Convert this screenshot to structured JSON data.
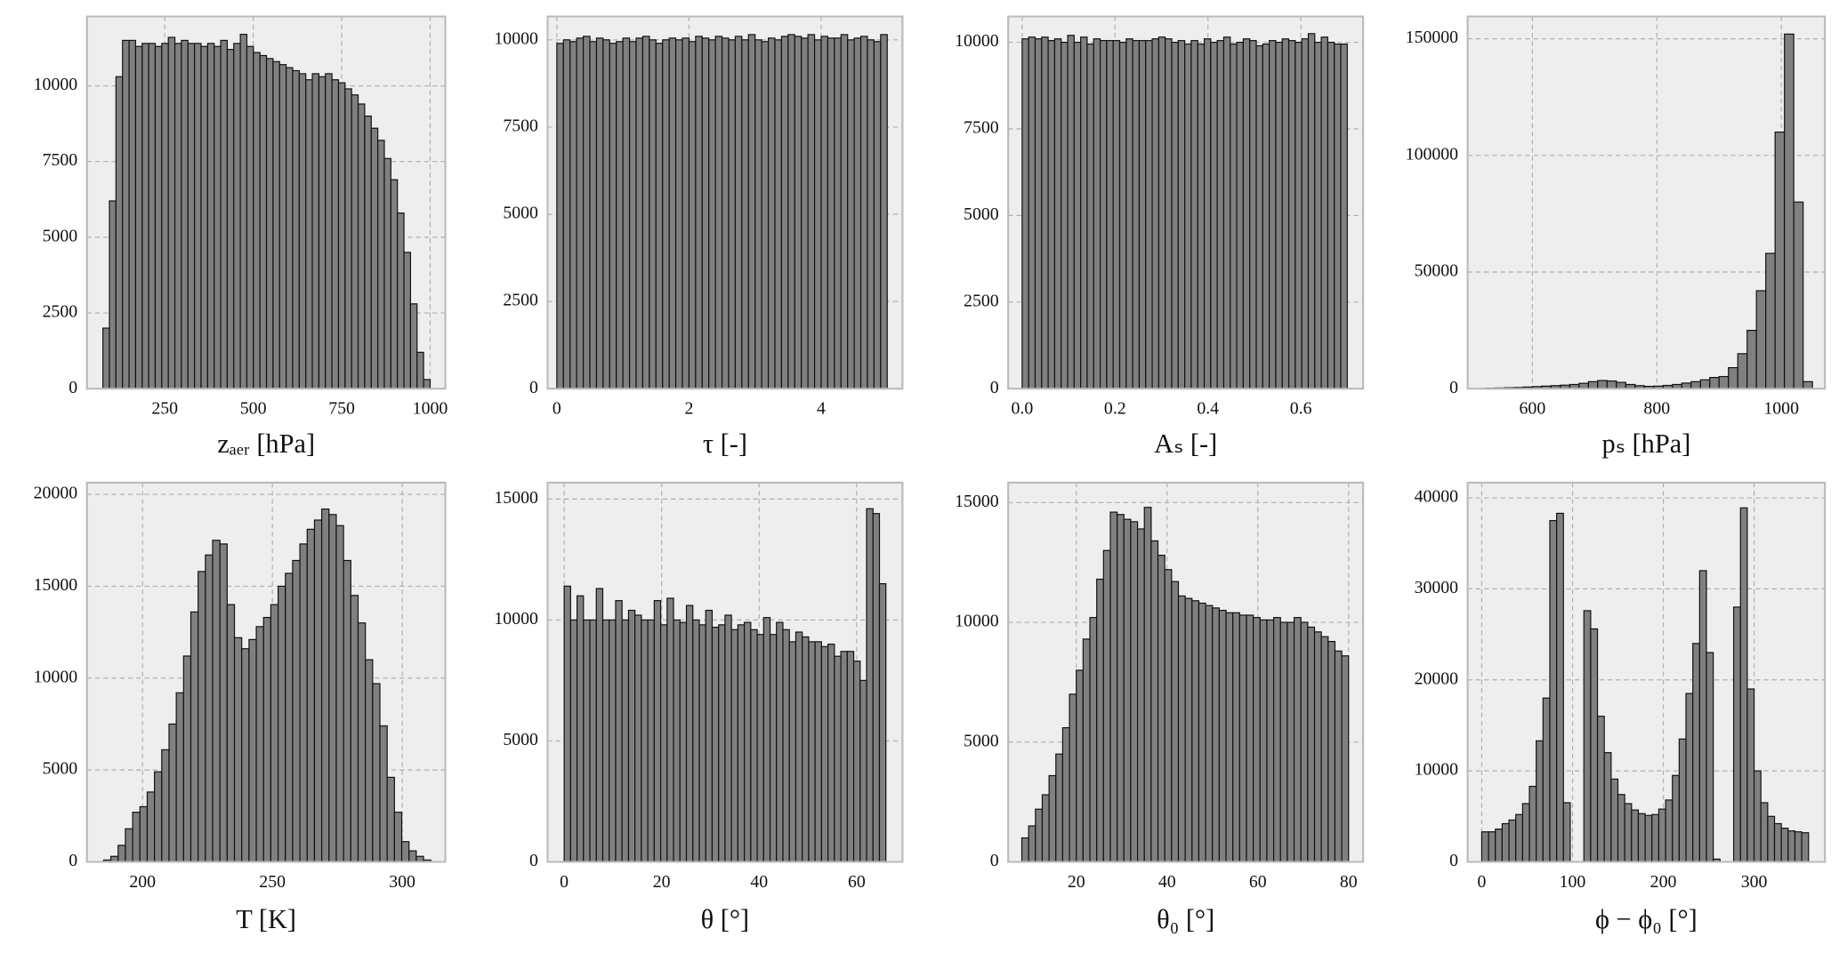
{
  "chart_data": [
    {
      "type": "histogram",
      "xlabel": "zₐₑᵣ [hPa]",
      "color": "#808080",
      "grid": true,
      "bins": [
        75,
        93.5,
        112,
        130.5,
        149,
        167.5,
        186,
        204.5,
        223,
        241.5,
        260,
        278.5,
        297,
        315.5,
        334,
        352.5,
        371,
        389.5,
        408,
        426.5,
        445,
        463.5,
        482,
        500.5,
        519,
        537.5,
        556,
        574.5,
        593,
        611.5,
        630,
        648.5,
        667,
        685.5,
        704,
        722.5,
        741,
        759.5,
        778,
        796.5,
        815,
        833.5,
        852,
        870.5,
        889,
        907.5,
        926,
        944.5,
        963,
        981.5,
        1000
      ],
      "values": [
        2000,
        6200,
        10300,
        11500,
        11500,
        11300,
        11400,
        11400,
        11300,
        11400,
        11600,
        11400,
        11500,
        11400,
        11400,
        11300,
        11400,
        11300,
        11500,
        11200,
        11400,
        11700,
        11300,
        11100,
        11000,
        10900,
        10800,
        10700,
        10600,
        10500,
        10400,
        10200,
        10400,
        10300,
        10400,
        10200,
        10100,
        9900,
        9700,
        9400,
        9000,
        8600,
        8200,
        7600,
        6900,
        5800,
        4500,
        2800,
        1200,
        300
      ],
      "xlim": [
        30,
        1043
      ],
      "xticks": [
        250,
        500,
        750,
        1000
      ],
      "ylim": [
        0,
        12290
      ],
      "yticks": [
        0,
        2500,
        5000,
        7500,
        10000
      ]
    },
    {
      "type": "histogram",
      "xlabel": "τ [-]",
      "color": "#808080",
      "grid": true,
      "bins": [
        0,
        0.1,
        0.2,
        0.3,
        0.4,
        0.5,
        0.6,
        0.7,
        0.8,
        0.9,
        1,
        1.1,
        1.2,
        1.3,
        1.4,
        1.5,
        1.6,
        1.7,
        1.8,
        1.9,
        2,
        2.1,
        2.2,
        2.3,
        2.4,
        2.5,
        2.6,
        2.7,
        2.8,
        2.9,
        3,
        3.1,
        3.2,
        3.3,
        3.4,
        3.5,
        3.6,
        3.7,
        3.8,
        3.9,
        4,
        4.1,
        4.2,
        4.3,
        4.4,
        4.5,
        4.6,
        4.7,
        4.8,
        4.9,
        5
      ],
      "values": [
        9900,
        10000,
        9950,
        10050,
        10100,
        9950,
        10050,
        10000,
        9900,
        9950,
        10050,
        9950,
        10050,
        10100,
        10000,
        9900,
        10000,
        10050,
        10000,
        10050,
        9950,
        10100,
        10050,
        10000,
        10100,
        10050,
        10000,
        10100,
        10000,
        10150,
        10000,
        9950,
        10050,
        10000,
        10100,
        10150,
        10100,
        10050,
        10150,
        10000,
        10100,
        10050,
        10050,
        10150,
        10000,
        10050,
        10100,
        10000,
        9950,
        10150
      ],
      "xlim": [
        -0.14,
        5.23
      ],
      "xticks": [
        0,
        2,
        4
      ],
      "ylim": [
        0,
        10670
      ],
      "yticks": [
        0,
        2500,
        5000,
        7500,
        10000
      ]
    },
    {
      "type": "histogram",
      "xlabel": "Aₛ [-]",
      "color": "#808080",
      "grid": true,
      "bins": [
        0,
        0.014,
        0.028,
        0.042,
        0.056,
        0.07,
        0.084,
        0.098,
        0.112,
        0.126,
        0.14,
        0.154,
        0.168,
        0.182,
        0.196,
        0.21,
        0.224,
        0.238,
        0.252,
        0.266,
        0.28,
        0.294,
        0.308,
        0.322,
        0.336,
        0.35,
        0.364,
        0.378,
        0.392,
        0.406,
        0.42,
        0.434,
        0.448,
        0.462,
        0.476,
        0.49,
        0.504,
        0.518,
        0.532,
        0.546,
        0.56,
        0.574,
        0.588,
        0.602,
        0.616,
        0.63,
        0.644,
        0.658,
        0.672,
        0.686,
        0.7
      ],
      "values": [
        10100,
        10150,
        10100,
        10150,
        10050,
        10100,
        10000,
        10200,
        10000,
        10150,
        9950,
        10100,
        10050,
        10050,
        10050,
        10000,
        10100,
        10050,
        10050,
        10050,
        10100,
        10150,
        10100,
        10000,
        10050,
        9950,
        10050,
        9950,
        10100,
        10000,
        10050,
        10150,
        9950,
        10000,
        10100,
        10050,
        9900,
        9950,
        10050,
        10000,
        10100,
        10050,
        10000,
        10100,
        10250,
        10000,
        10150,
        10000,
        9950,
        9950
      ],
      "xlim": [
        -0.03,
        0.734
      ],
      "xticks": [
        {
          "value": 0,
          "label": "0.0"
        },
        0.2,
        0.4,
        0.6
      ],
      "ylim": [
        0,
        10746
      ],
      "yticks": [
        0,
        2500,
        5000,
        7500,
        10000
      ]
    },
    {
      "type": "histogram",
      "xlabel": "pₛ [hPa]",
      "color": "#808080",
      "grid": true,
      "bins": [
        525,
        540,
        555,
        570,
        585,
        600,
        615,
        630,
        645,
        660,
        675,
        690,
        705,
        720,
        735,
        750,
        765,
        780,
        795,
        810,
        825,
        840,
        855,
        870,
        885,
        900,
        915,
        930,
        945,
        960,
        975,
        990,
        1005,
        1020,
        1035,
        1050
      ],
      "values": [
        200,
        300,
        400,
        500,
        700,
        900,
        1100,
        1300,
        1500,
        1800,
        2300,
        3000,
        3500,
        3300,
        2700,
        1800,
        1300,
        1000,
        1100,
        1400,
        1800,
        2400,
        3000,
        3800,
        4800,
        5200,
        9000,
        15000,
        25000,
        42000,
        58000,
        110000,
        152000,
        80000,
        3000
      ],
      "xlim": [
        496,
        1070
      ],
      "xticks": [
        600,
        800,
        1000
      ],
      "ylim": [
        0,
        159560
      ],
      "yticks": [
        0,
        50000,
        100000,
        150000
      ]
    },
    {
      "type": "histogram",
      "xlabel": "T [K]",
      "color": "#808080",
      "grid": true,
      "bins": [
        185,
        187.8,
        190.6,
        193.4,
        196.2,
        199,
        201.8,
        204.6,
        207.4,
        210.2,
        213,
        215.8,
        218.6,
        221.4,
        224.2,
        227,
        229.8,
        232.6,
        235.4,
        238.2,
        241,
        243.8,
        246.6,
        249.4,
        252.2,
        255,
        257.8,
        260.6,
        263.4,
        266.2,
        269,
        271.8,
        274.6,
        277.4,
        280.2,
        283,
        285.8,
        288.6,
        291.4,
        294.2,
        297,
        299.8,
        302.6,
        305.4,
        308.2,
        311
      ],
      "values": [
        100,
        300,
        900,
        1800,
        2700,
        3000,
        3800,
        4900,
        6100,
        7500,
        9200,
        11200,
        13600,
        15800,
        16700,
        17500,
        17300,
        14000,
        12200,
        11600,
        12100,
        12800,
        13300,
        14000,
        15000,
        15700,
        16400,
        17300,
        18100,
        18600,
        19200,
        18900,
        18300,
        16400,
        14500,
        13000,
        11000,
        9700,
        7400,
        4600,
        2700,
        1100,
        600,
        300,
        100
      ],
      "xlim": [
        178.6,
        316.6
      ],
      "xticks": [
        200,
        250,
        300
      ],
      "ylim": [
        0,
        20639
      ],
      "yticks": [
        0,
        5000,
        10000,
        15000,
        20000
      ]
    },
    {
      "type": "histogram",
      "xlabel": "θ [°]",
      "color": "#808080",
      "grid": true,
      "bins": [
        0,
        1.32,
        2.64,
        3.96,
        5.28,
        6.6,
        7.92,
        9.24,
        10.56,
        11.88,
        13.2,
        14.52,
        15.84,
        17.16,
        18.48,
        19.8,
        21.12,
        22.44,
        23.76,
        25.08,
        26.4,
        27.72,
        29.04,
        30.36,
        31.68,
        33,
        34.32,
        35.64,
        36.96,
        38.28,
        39.6,
        40.92,
        42.24,
        43.56,
        44.88,
        46.2,
        47.52,
        48.84,
        50.16,
        51.48,
        52.8,
        54.12,
        55.44,
        56.76,
        58.08,
        59.4,
        60.72,
        62.04,
        63.36,
        64.68,
        66
      ],
      "values": [
        11400,
        10000,
        11000,
        10000,
        10000,
        11300,
        10000,
        10000,
        10800,
        10000,
        10400,
        10200,
        10000,
        10000,
        10800,
        9800,
        10900,
        10000,
        9900,
        10600,
        10000,
        9800,
        10400,
        9700,
        9800,
        10200,
        9600,
        9800,
        9900,
        9600,
        9400,
        10100,
        9400,
        9900,
        9600,
        9100,
        9500,
        9300,
        9100,
        9100,
        8900,
        9000,
        8500,
        8700,
        8700,
        8300,
        7500,
        14600,
        14400,
        11500
      ],
      "xlim": [
        -3.4,
        69.4
      ],
      "xticks": [
        0,
        20,
        40,
        60
      ],
      "ylim": [
        0,
        15680
      ],
      "yticks": [
        0,
        5000,
        10000,
        15000
      ]
    },
    {
      "type": "histogram",
      "xlabel": "θ₀ [°]",
      "color": "#808080",
      "grid": true,
      "bins": [
        8,
        9.5,
        11,
        12.5,
        14,
        15.5,
        17,
        18.5,
        20,
        21.5,
        23,
        24.5,
        26,
        27.5,
        29,
        30.5,
        32,
        33.5,
        35,
        36.5,
        38,
        39.5,
        41,
        42.5,
        44,
        45.5,
        47,
        48.5,
        50,
        51.5,
        53,
        54.5,
        56,
        57.5,
        59,
        60.5,
        62,
        63.5,
        65,
        66.5,
        68,
        69.5,
        71,
        72.5,
        74,
        75.5,
        77,
        78.5,
        80
      ],
      "values": [
        1000,
        1500,
        2200,
        2800,
        3600,
        4500,
        5600,
        7000,
        8000,
        9300,
        10200,
        11800,
        13000,
        14600,
        14500,
        14300,
        14200,
        13900,
        14800,
        13400,
        12800,
        12200,
        11700,
        11100,
        11000,
        10900,
        10800,
        10700,
        10600,
        10500,
        10400,
        10400,
        10300,
        10300,
        10200,
        10100,
        10100,
        10200,
        10000,
        10000,
        10200,
        10000,
        9800,
        9600,
        9400,
        9200,
        8800,
        8600
      ],
      "xlim": [
        5,
        83.2
      ],
      "xticks": [
        20,
        40,
        60,
        80
      ],
      "ylim": [
        0,
        15833
      ],
      "yticks": [
        0,
        5000,
        10000,
        15000
      ]
    },
    {
      "type": "histogram",
      "xlabel": "ϕ − ϕ₀ [°]",
      "color": "#808080",
      "grid": true,
      "bins": [
        0,
        7.5,
        15,
        22.5,
        30,
        37.5,
        45,
        52.5,
        60,
        67.5,
        75,
        82.5,
        90,
        97.5,
        105,
        112.5,
        120,
        127.5,
        135,
        142.5,
        150,
        157.5,
        165,
        172.5,
        180,
        187.5,
        195,
        202.5,
        210,
        217.5,
        225,
        232.5,
        240,
        247.5,
        255,
        262.5,
        270,
        277.5,
        285,
        292.5,
        300,
        307.5,
        315,
        322.5,
        330,
        337.5,
        345,
        352.5,
        360
      ],
      "values": [
        3300,
        3300,
        3600,
        4200,
        4600,
        5200,
        6400,
        8300,
        13300,
        18000,
        37500,
        38300,
        6500,
        0,
        0,
        27600,
        25600,
        16000,
        12000,
        9100,
        7400,
        6400,
        5700,
        5300,
        5100,
        5200,
        5800,
        6800,
        9500,
        13500,
        18500,
        24000,
        32000,
        23000,
        300,
        0,
        0,
        28000,
        38900,
        19000,
        10000,
        6500,
        5000,
        4200,
        3700,
        3400,
        3300,
        3200
      ],
      "xlim": [
        -15.5,
        378
      ],
      "xticks": [
        0,
        100,
        200,
        300
      ],
      "ylim": [
        0,
        41677
      ],
      "yticks": [
        0,
        10000,
        20000,
        30000,
        40000
      ]
    }
  ]
}
